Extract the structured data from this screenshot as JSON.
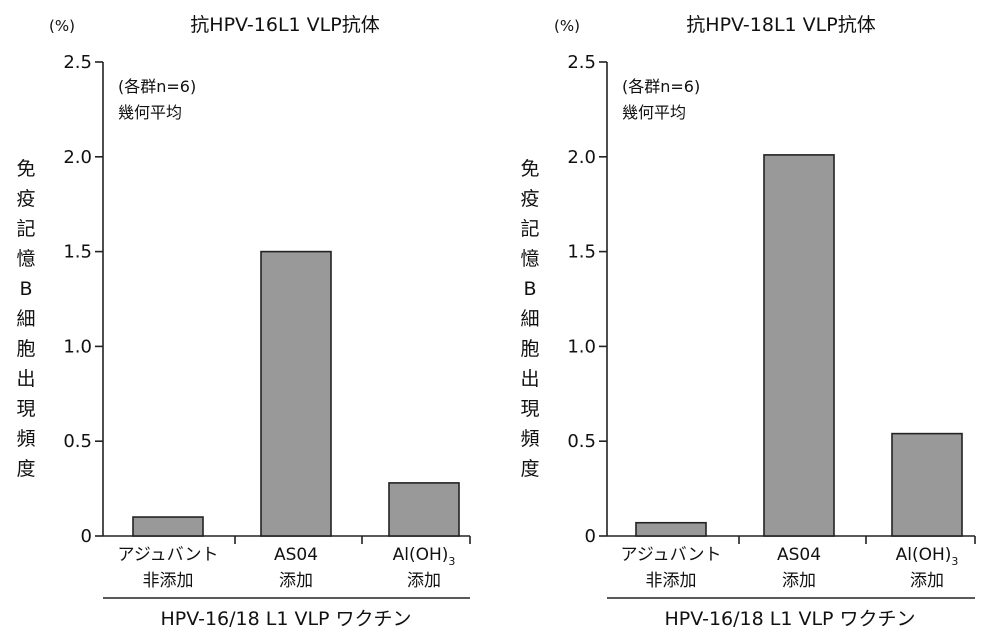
{
  "chart_data": [
    {
      "type": "bar",
      "title": "抗HPV-16L1 VLP抗体",
      "unit": "(%)",
      "ylabel": "免疫記憶B細胞出現頻度",
      "ylim": [
        0,
        2.5
      ],
      "yticks": [
        "0",
        "0.5",
        "1.0",
        "1.5",
        "2.0",
        "2.5"
      ],
      "annotation": [
        "(各群n=6)",
        "幾何平均"
      ],
      "categories": [
        {
          "line1": "アジュバント",
          "line2": "非添加"
        },
        {
          "line1": "AS04",
          "line2": "添加"
        },
        {
          "line1": "Al(OH)",
          "sub": "3",
          "line2": "添加"
        }
      ],
      "values": [
        0.1,
        1.5,
        0.28
      ],
      "group_label": "HPV-16/18 L1 VLP ワクチン",
      "bar_color": "#999999"
    },
    {
      "type": "bar",
      "title": "抗HPV-18L1 VLP抗体",
      "unit": "(%)",
      "ylabel": "免疫記憶B細胞出現頻度",
      "ylim": [
        0,
        2.5
      ],
      "yticks": [
        "0",
        "0.5",
        "1.0",
        "1.5",
        "2.0",
        "2.5"
      ],
      "annotation": [
        "(各群n=6)",
        "幾何平均"
      ],
      "categories": [
        {
          "line1": "アジュバント",
          "line2": "非添加"
        },
        {
          "line1": "AS04",
          "line2": "添加"
        },
        {
          "line1": "Al(OH)",
          "sub": "3",
          "line2": "添加"
        }
      ],
      "values": [
        0.07,
        2.01,
        0.54
      ],
      "group_label": "HPV-16/18 L1 VLP ワクチン",
      "bar_color": "#999999"
    }
  ]
}
